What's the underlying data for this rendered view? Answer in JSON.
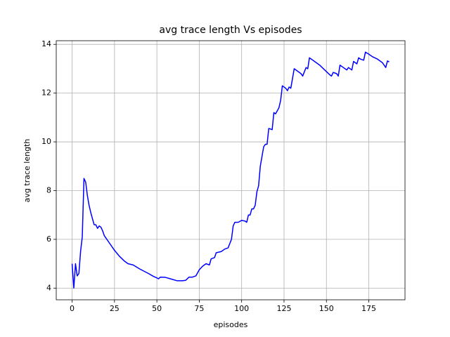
{
  "chart_data": {
    "type": "line",
    "title": "avg trace length Vs episodes",
    "xlabel": "episodes",
    "ylabel": "avg trace length",
    "x": [
      0,
      1,
      2,
      3,
      4,
      5,
      6,
      7,
      8,
      9,
      10,
      11,
      12,
      13,
      14,
      15,
      16,
      17,
      18,
      19,
      20,
      22,
      25,
      28,
      31,
      33,
      36,
      40,
      45,
      48,
      50,
      51,
      52,
      55,
      58,
      62,
      65,
      67,
      69,
      71,
      73,
      75,
      77,
      79,
      81,
      82,
      84,
      85,
      88,
      90,
      92,
      94,
      95,
      96,
      98,
      100,
      102,
      103,
      104,
      105,
      106,
      107,
      108,
      109,
      110,
      111,
      112,
      113,
      114,
      115,
      116,
      118,
      119,
      120,
      122,
      123,
      124,
      126,
      127,
      128,
      129,
      130,
      131,
      133,
      135,
      136,
      138,
      139,
      140,
      143,
      146,
      149,
      152,
      153,
      154,
      156,
      157,
      158,
      160,
      162,
      163,
      165,
      166,
      167,
      168,
      169,
      170,
      172,
      173,
      175,
      177,
      180,
      183,
      185,
      186,
      187
    ],
    "series": [
      {
        "name": "avg trace length",
        "color": "#0000ff",
        "values": [
          5.0,
          4.0,
          5.0,
          4.5,
          4.6,
          5.5,
          6.1,
          8.5,
          8.35,
          7.8,
          7.4,
          7.1,
          6.85,
          6.6,
          6.6,
          6.45,
          6.55,
          6.5,
          6.35,
          6.15,
          6.05,
          5.85,
          5.55,
          5.3,
          5.1,
          5.0,
          4.95,
          4.78,
          4.6,
          4.48,
          4.42,
          4.38,
          4.45,
          4.44,
          4.38,
          4.3,
          4.3,
          4.32,
          4.45,
          4.45,
          4.5,
          4.75,
          4.9,
          5.0,
          4.95,
          5.2,
          5.25,
          5.45,
          5.5,
          5.6,
          5.65,
          6.0,
          6.55,
          6.7,
          6.7,
          6.78,
          6.75,
          6.7,
          7.0,
          7.0,
          7.25,
          7.25,
          7.4,
          7.95,
          8.2,
          9.0,
          9.4,
          9.8,
          9.9,
          9.9,
          10.55,
          10.5,
          11.2,
          11.15,
          11.4,
          11.7,
          12.3,
          12.2,
          12.1,
          12.25,
          12.2,
          12.6,
          13.0,
          12.9,
          12.8,
          12.7,
          13.05,
          13.0,
          13.45,
          13.3,
          13.15,
          12.95,
          12.75,
          12.7,
          12.85,
          12.8,
          12.7,
          13.15,
          13.05,
          12.95,
          13.05,
          12.95,
          13.3,
          13.25,
          13.2,
          13.45,
          13.4,
          13.35,
          13.68,
          13.6,
          13.5,
          13.4,
          13.25,
          13.05,
          13.32,
          13.28
        ]
      }
    ],
    "xlim": [
      -9.35,
      196.35
    ],
    "ylim": [
      3.52,
      14.15
    ],
    "xticks": [
      0,
      25,
      50,
      75,
      100,
      125,
      150,
      175
    ],
    "yticks": [
      4,
      6,
      8,
      10,
      12,
      14
    ],
    "grid": true
  }
}
